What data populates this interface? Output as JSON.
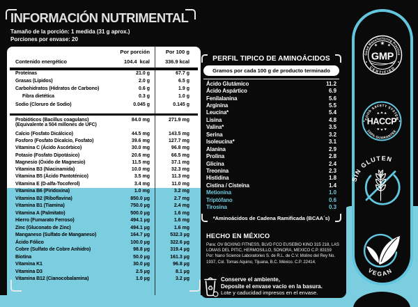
{
  "colors": {
    "background": "#0a0a0a",
    "accent_cyan": "#7bcde0",
    "capsule_stroke": "#63c6df",
    "white": "#ffffff"
  },
  "left_panel": {
    "title": "INFORMACIÓN NUTRIMENTAL",
    "serving_size": "Tamaño de la porción: 1 medida (31 g aprox.)",
    "servings_per_container": "Porciones por envase: 20",
    "col_header_1": "Por porción",
    "col_header_2": "Por 100 g",
    "energy_row": {
      "name": "Contenido energético",
      "v1": "104.4  kcal",
      "v2": "336.9 kcal"
    },
    "basic_rows": [
      {
        "name": "Proteínas",
        "v1": "21.0 g",
        "v2": "67.7 g"
      },
      {
        "name": "Grasas (Lípidos)",
        "v1": "2.0 g",
        "v2": "6.5 g"
      },
      {
        "name": "Carbohidratos (Hidratos de Carbono)",
        "v1": "0.6 g",
        "v2": "1.9 g"
      },
      {
        "name": "Fibra dietética",
        "indent": true,
        "v1": "0.3 g",
        "v2": "1.0 g"
      },
      {
        "name": "Sodio (Cloruro de Sodio)",
        "v1": "0.045 g",
        "v2": "0.145 g"
      }
    ],
    "mineral_rows": [
      {
        "name": "Probióticos (Bacillus coagulans)",
        "name2": "(Equivalente a 504 millones de UFC)",
        "v1": "84.0 mg",
        "v2": "271.9 mg"
      },
      {
        "name": "Calcio (Fosfato Dicálcico)",
        "v1": "44.5 mg",
        "v2": "143.5 mg"
      },
      {
        "name": "Fosforo (Fosfato Dicalcio, Fosfato)",
        "v1": "39.6 mg",
        "v2": "127.7 mg"
      },
      {
        "name": "Vitamina C (Ácido Ascórbico)",
        "v1": "30.0 mg",
        "v2": "96.8 mg"
      },
      {
        "name": "Potasio (Fosfato Dipotásico)",
        "v1": "20.6 mg",
        "v2": "66.5 mg"
      },
      {
        "name": "Magnesio (Óxido de Magnesio)",
        "v1": "11.5 mg",
        "v2": "37.1 mg"
      },
      {
        "name": "Vitamina B3 (Niacinamida)",
        "v1": "10.0 mg",
        "v2": "32.3 mg"
      },
      {
        "name": "Vitamina B5 (Ácido Pantoténico)",
        "v1": "3.5 mg",
        "v2": "11.3 mg"
      },
      {
        "name": "Vitamina E (D-alfa-Tocoferol)",
        "v1": "3.4 mg",
        "v2": "11.0 mg"
      }
    ],
    "highlight_rows": [
      {
        "name": "Vitamina B6 (Piridoxina)",
        "v1": "1.0 mg",
        "v2": "3.2 mg"
      },
      {
        "name": "Vitamina B2 (Riboflavina)",
        "v1": "850.0 µg",
        "v2": "2.7 mg"
      },
      {
        "name": "Vitamina B1 (Tiamina)",
        "v1": "750.0 µg",
        "v2": "2.4 mg"
      },
      {
        "name": "Vitamina A (Palmitato)",
        "v1": "500.0 µg",
        "v2": "1.6 mg"
      },
      {
        "name": "Hierro (Fumarato Ferroso)",
        "v1": "494.1 µg",
        "v2": "1.6 mg"
      },
      {
        "name": "Zinc (Gluconato de Zinc)",
        "v1": "494.1 µg",
        "v2": "1.6 mg"
      },
      {
        "name": "Manganeso (Sulfato de Manganeso)",
        "v1": "164.7 µg",
        "v2": "532.3 µg"
      },
      {
        "name": "Ácido Fólico",
        "v1": "100.0 µg",
        "v2": "322.6 µg"
      },
      {
        "name": "Cobre (Sulfato de Cobre Anhidro)",
        "v1": "98.8 µg",
        "v2": "319.4 µg"
      },
      {
        "name": "Biotina",
        "v1": "50.0 µg",
        "v2": "161.3 µg"
      },
      {
        "name": "Vitamina K1",
        "v1": "30.0 µg",
        "v2": "96.8 µg"
      },
      {
        "name": "Vitamina D3",
        "v1": "2.5 µg",
        "v2": "8.1 µg"
      },
      {
        "name": "Vitamina B12 (Cianocobalamina)",
        "v1": "1.0 µg",
        "v2": "3.2 µg"
      }
    ]
  },
  "amino_panel": {
    "title": "PERFIL TIPICO DE AMINOÁCIDOS",
    "subtitle": "Gramos por cada 100 g de producto terminado",
    "rows": [
      {
        "name": "Ácido Glutámico",
        "value": "11.2"
      },
      {
        "name": "Ácido Aspártico",
        "value": "6.9"
      },
      {
        "name": "Fenilalanina",
        "value": "5.6"
      },
      {
        "name": "Arginina",
        "value": "5.5"
      },
      {
        "name": "Leucina*",
        "value": "5.4"
      },
      {
        "name": "Lisina",
        "value": "4.8"
      },
      {
        "name": "Valina*",
        "value": "3.5"
      },
      {
        "name": "Serina",
        "value": "3.2"
      },
      {
        "name": "Isoleucina*",
        "value": "3.1"
      },
      {
        "name": "Alanina",
        "value": "2.9"
      },
      {
        "name": "Prolina",
        "value": "2.8"
      },
      {
        "name": "Glicina",
        "value": "2.4"
      },
      {
        "name": "Treonina",
        "value": "2.3"
      },
      {
        "name": "Histidina",
        "value": "1.8"
      },
      {
        "name": "Cistina / Cisteína",
        "value": "1.4"
      },
      {
        "name": "Metionina",
        "value": "1.0",
        "highlight": true
      },
      {
        "name": "Triptófano",
        "value": "0.6",
        "highlight": true
      },
      {
        "name": "Tirosina",
        "value": "0.3",
        "highlight": true
      }
    ],
    "footnote": "*Aminoácidos de Cadena Ramificada (BCAA´s)"
  },
  "origin": {
    "title": "HECHO EN MÉXICO",
    "lines": [
      "Para: OV BOXING FITNESS, BLVD FCO EUSEBIO KINO 315 218, LAS",
      "LOMAS DEL PITIC, HERMOSILLO, SONORA, MEXICO C.P. 83159",
      "Por: Nano Science Laboratories S. de R.L. de C.V. Molino del Rey No.",
      "1937, Col. Tomas Aquino, Tijuana, B.C. México. C.P. 22414."
    ]
  },
  "disposal": {
    "line1": "Conserve el ambiente,",
    "line2": "Deposite el envase vacío en la basura.",
    "line3": "Lote y caducidad impresos en el envase."
  },
  "badges": {
    "gmp": {
      "top_arc": "Good Manufacturing Practice",
      "center": "GMP",
      "bottom_arc": "CERTIFIED"
    },
    "haccp": {
      "top_arc": "FOOD SAFETY SYSTEM",
      "center": "HACCP",
      "bottom_arc": "100% GUARANTEE"
    },
    "gluten_free": {
      "arc": "SIN GLUTEN"
    },
    "vegan": {
      "arc": "VEGAN"
    }
  }
}
